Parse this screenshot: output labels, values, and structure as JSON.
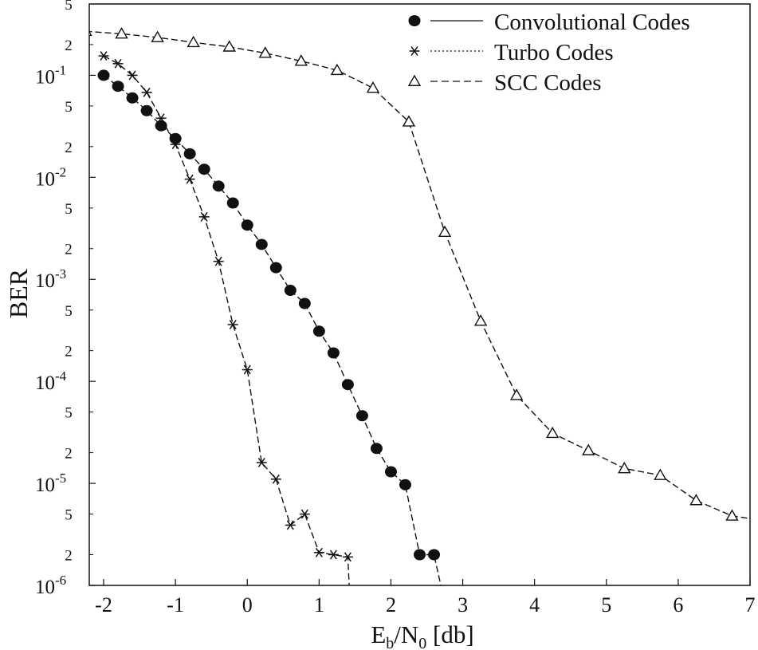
{
  "chart_data": {
    "type": "line",
    "title": "",
    "xlabel": "Eb/N0 [db]",
    "xlabel_parts": {
      "main": "E",
      "sub1": "b",
      "mid": "/N",
      "sub2": "0",
      "tail": " [db]"
    },
    "ylabel": "BER",
    "xlim": [
      -2.2,
      7
    ],
    "ylim": [
      1e-06,
      0.5
    ],
    "yscale": "log",
    "grid": false,
    "legend_position": "top-right",
    "x_ticks": [
      -2,
      -1,
      0,
      1,
      2,
      3,
      4,
      5,
      6,
      7
    ],
    "x_tick_labels": [
      "-2",
      "-1",
      "0",
      "1",
      "2",
      "3",
      "4",
      "5",
      "6",
      "7"
    ],
    "y_major_ticks": [
      {
        "value": 0.1,
        "base": "10",
        "exp": "-1"
      },
      {
        "value": 0.01,
        "base": "10",
        "exp": "-2"
      },
      {
        "value": 0.001,
        "base": "10",
        "exp": "-3"
      },
      {
        "value": 0.0001,
        "base": "10",
        "exp": "-4"
      },
      {
        "value": 1e-05,
        "base": "10",
        "exp": "-5"
      },
      {
        "value": 1e-06,
        "base": "10",
        "exp": "-6"
      }
    ],
    "y_minor_ticks": [
      {
        "value": 0.5,
        "label": "5"
      },
      {
        "value": 0.2,
        "label": "2"
      },
      {
        "value": 0.05,
        "label": "5"
      },
      {
        "value": 0.02,
        "label": "2"
      },
      {
        "value": 0.005,
        "label": "5"
      },
      {
        "value": 0.002,
        "label": "2"
      },
      {
        "value": 0.0005,
        "label": "5"
      },
      {
        "value": 0.0002,
        "label": "2"
      },
      {
        "value": 5e-05,
        "label": "5"
      },
      {
        "value": 2e-05,
        "label": "2"
      },
      {
        "value": 5e-06,
        "label": "5"
      },
      {
        "value": 2e-06,
        "label": "2"
      }
    ],
    "series": [
      {
        "name": "Convolutional Codes",
        "marker": "filled-circle",
        "legend_line": "solid",
        "x": [
          -2.0,
          -1.8,
          -1.6,
          -1.4,
          -1.2,
          -1.0,
          -0.8,
          -0.6,
          -0.4,
          -0.2,
          0.0,
          0.2,
          0.4,
          0.6,
          0.8,
          1.0,
          1.2,
          1.4,
          1.6,
          1.8,
          2.0,
          2.2,
          2.4,
          2.6
        ],
        "y": [
          0.1,
          0.078,
          0.06,
          0.045,
          0.032,
          0.024,
          0.017,
          0.012,
          0.0082,
          0.0056,
          0.0034,
          0.0022,
          0.0013,
          0.00078,
          0.00058,
          0.00031,
          0.00019,
          9.3e-05,
          4.6e-05,
          2.2e-05,
          1.3e-05,
          9.7e-06,
          2e-06,
          2e-06
        ],
        "tail_to_axis_x": 2.7
      },
      {
        "name": "Turbo Codes",
        "marker": "asterisk",
        "legend_line": "dotted",
        "x": [
          -2.0,
          -1.8,
          -1.6,
          -1.4,
          -1.2,
          -1.0,
          -0.8,
          -0.6,
          -0.4,
          -0.2,
          0.0,
          0.2,
          0.4,
          0.6,
          0.8,
          1.0,
          1.2,
          1.4
        ],
        "y": [
          0.155,
          0.13,
          0.1,
          0.068,
          0.038,
          0.021,
          0.0096,
          0.0041,
          0.0015,
          0.00036,
          0.00013,
          1.6e-05,
          1.1e-05,
          3.9e-06,
          5e-06,
          2.1e-06,
          2e-06,
          1.9e-06
        ],
        "tail_to_axis_x": 1.42
      },
      {
        "name": "SCC Codes",
        "marker": "open-triangle",
        "legend_line": "dashed",
        "x": [
          -2.25,
          -1.75,
          -1.25,
          -0.75,
          -0.25,
          0.25,
          0.75,
          1.25,
          1.75,
          2.25,
          2.75,
          3.25,
          3.75,
          4.25,
          4.75,
          5.25,
          5.75,
          6.25,
          6.75
        ],
        "y": [
          0.27,
          0.255,
          0.235,
          0.21,
          0.19,
          0.165,
          0.138,
          0.112,
          0.075,
          0.035,
          0.0029,
          0.00039,
          7.3e-05,
          3.1e-05,
          2.1e-05,
          1.4e-05,
          1.2e-05,
          6.8e-06,
          4.8e-06
        ],
        "tail_to_edge_y": 4.5e-06
      }
    ]
  }
}
